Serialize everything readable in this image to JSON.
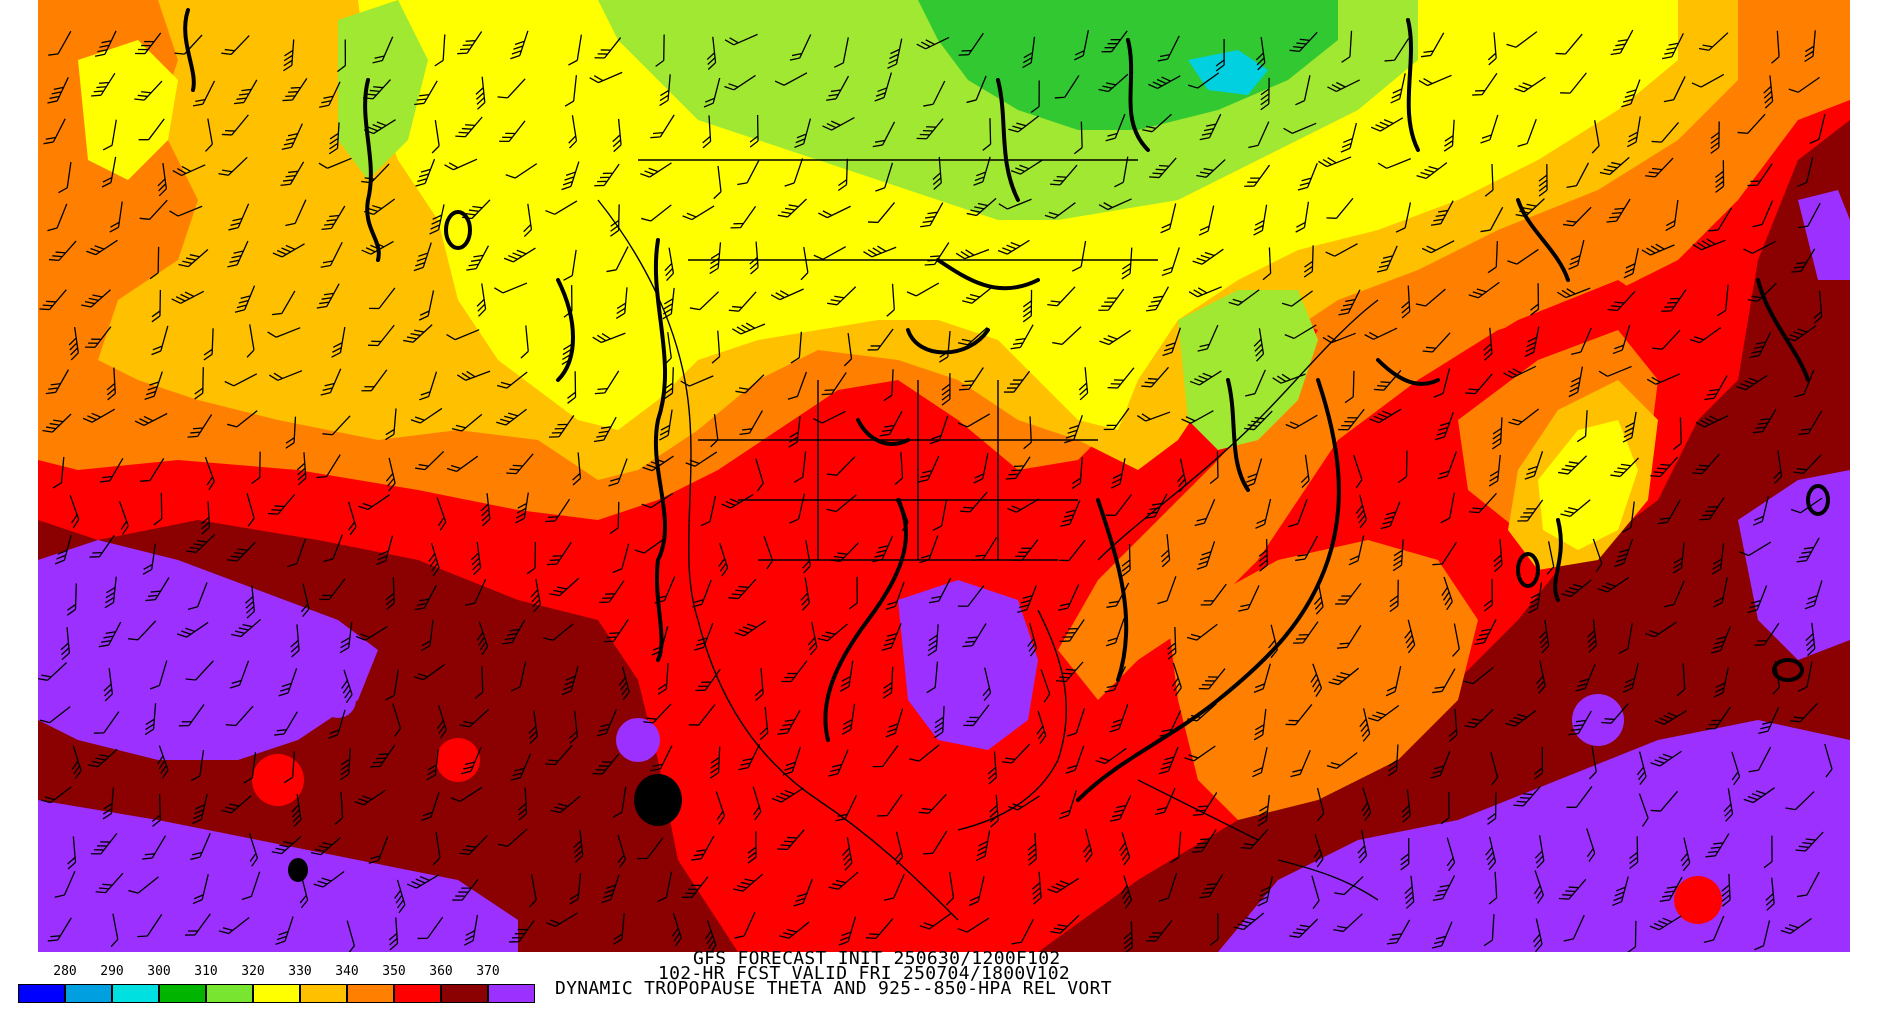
{
  "map": {
    "palette": {
      "bg_warm": "#8b0000",
      "red": "#ff0000",
      "orange": "#ff8000",
      "gold": "#ffc000",
      "yellow": "#ffff00",
      "lime": "#a0e832",
      "green": "#32c832",
      "cyan": "#00d0e0",
      "purple": "#9b30ff",
      "contour": "#000000"
    },
    "features": [
      "wind-barbs",
      "vorticity-contours",
      "coastlines",
      "political-borders"
    ]
  },
  "legend": {
    "labels": [
      "280",
      "290",
      "300",
      "310",
      "320",
      "330",
      "340",
      "350",
      "360",
      "370"
    ],
    "colors": [
      "#0000ff",
      "#00a0e0",
      "#00e0e0",
      "#00b400",
      "#78e630",
      "#ffff00",
      "#ffc000",
      "#ff8000",
      "#ff0000",
      "#8b0000",
      "#9b30ff"
    ]
  },
  "caption": {
    "line1": "GFS FORECAST INIT 250630/1200F102",
    "line2": "102-HR FCST VALID FRI 250704/1800V102",
    "line3": "DYNAMIC TROPOPAUSE THETA AND 925--850-HPA REL VORT"
  }
}
